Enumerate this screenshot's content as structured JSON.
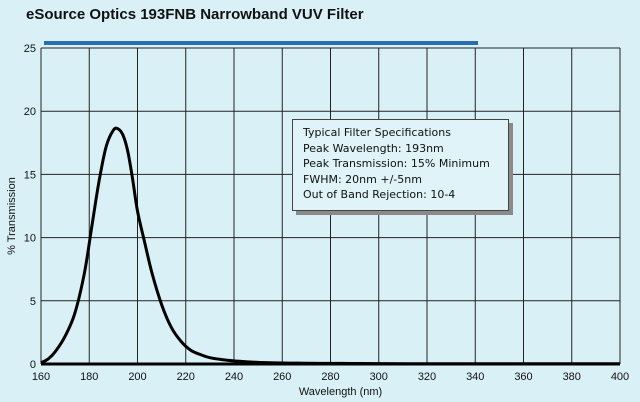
{
  "chart_data": {
    "type": "line",
    "title": "eSource Optics 193FNB Narrowband VUV Filter",
    "xlabel": "Wavelength (nm)",
    "ylabel": "% Transmission",
    "xlim": [
      160,
      400
    ],
    "ylim": [
      0,
      25
    ],
    "xticks": [
      160,
      180,
      200,
      220,
      240,
      260,
      280,
      300,
      320,
      340,
      360,
      380,
      400
    ],
    "yticks": [
      0,
      5,
      10,
      15,
      20,
      25
    ],
    "grid": true,
    "series": [
      {
        "color": "#000000",
        "x": [
          160,
          163,
          166,
          170,
          174,
          178,
          181,
          184,
          187,
          190,
          192,
          194,
          196,
          198,
          200,
          203,
          206,
          210,
          214,
          218,
          222,
          226,
          230,
          235,
          240,
          245,
          250,
          255,
          260,
          265,
          270,
          280,
          290,
          300,
          320,
          340,
          360,
          380,
          400
        ],
        "y": [
          0.1,
          0.4,
          1.0,
          2.2,
          4.0,
          7.2,
          10.8,
          14.4,
          17.2,
          18.5,
          18.6,
          18.1,
          16.8,
          14.6,
          12.1,
          9.6,
          7.2,
          4.7,
          2.9,
          1.8,
          1.1,
          0.75,
          0.5,
          0.35,
          0.25,
          0.18,
          0.13,
          0.1,
          0.08,
          0.07,
          0.06,
          0.05,
          0.04,
          0.03,
          0.02,
          0.02,
          0.02,
          0.02,
          0.02
        ]
      }
    ],
    "annotations": [
      "Typical Filter Specifications",
      "Peak Wavelength: 193nm",
      "Peak Transmission: 15% Minimum",
      "FWHM: 20nm +/-5nm",
      "Out of Band Rejection: 10-4"
    ]
  },
  "colors": {
    "background": "#d9f1f6",
    "accent_bar": "#2a6db0",
    "grid": "#222222",
    "curve": "#000000"
  }
}
